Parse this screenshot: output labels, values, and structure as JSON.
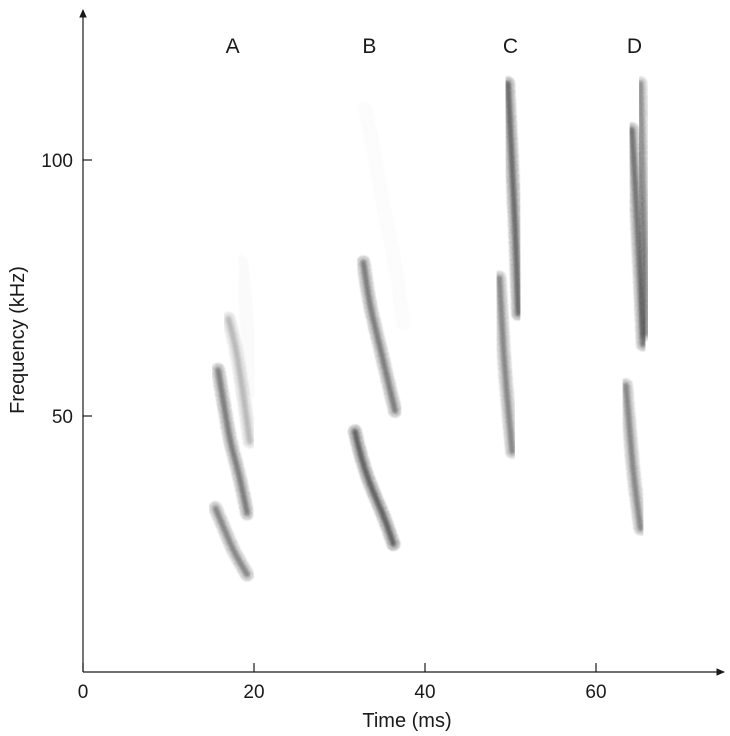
{
  "chart_data": {
    "type": "scatter",
    "xlabel": "Time (ms)",
    "ylabel": "Frequency (kHz)",
    "xlim": [
      0,
      75
    ],
    "ylim": [
      0,
      122
    ],
    "xticks": [
      0,
      20,
      40,
      60
    ],
    "yticks": [
      50,
      100
    ],
    "grid": false,
    "panel_labels": [
      {
        "label": "A",
        "x": 17.5
      },
      {
        "label": "B",
        "x": 33.5
      },
      {
        "label": "C",
        "x": 50
      },
      {
        "label": "D",
        "x": 64.5
      }
    ],
    "calls": [
      {
        "call": "A",
        "component": "fundamental",
        "points": [
          [
            15.5,
            32
          ],
          [
            16.5,
            28
          ],
          [
            17.5,
            24
          ],
          [
            18.5,
            21
          ],
          [
            19.2,
            19
          ]
        ],
        "intensity": 0.55
      },
      {
        "call": "A",
        "component": "harmonic 2",
        "points": [
          [
            15.8,
            59
          ],
          [
            16.5,
            52
          ],
          [
            17.2,
            45
          ],
          [
            18.2,
            39
          ],
          [
            19.2,
            31
          ]
        ],
        "intensity": 0.6
      },
      {
        "call": "A",
        "component": "harmonic 3",
        "points": [
          [
            17.0,
            69
          ],
          [
            17.8,
            64
          ],
          [
            18.5,
            57
          ],
          [
            19.5,
            45
          ]
        ],
        "intensity": 0.3
      },
      {
        "call": "A",
        "component": "faint upper",
        "points": [
          [
            18.5,
            80
          ],
          [
            19.3,
            66
          ],
          [
            19.8,
            55
          ]
        ],
        "intensity": 0.07
      },
      {
        "call": "B",
        "component": "fundamental",
        "points": [
          [
            31.8,
            47
          ],
          [
            32.5,
            42
          ],
          [
            33.5,
            37
          ],
          [
            34.5,
            33
          ],
          [
            35.5,
            29
          ],
          [
            36.3,
            25
          ]
        ],
        "intensity": 0.75
      },
      {
        "call": "B",
        "component": "harmonic 2",
        "points": [
          [
            32.8,
            80
          ],
          [
            33.5,
            72
          ],
          [
            34.5,
            65
          ],
          [
            35.5,
            58
          ],
          [
            36.5,
            51
          ]
        ],
        "intensity": 0.6
      },
      {
        "call": "B",
        "component": "faint upper",
        "points": [
          [
            33.0,
            110
          ],
          [
            34.0,
            102
          ],
          [
            35.0,
            92
          ],
          [
            36.5,
            80
          ],
          [
            37.5,
            68
          ]
        ],
        "intensity": 0.05
      },
      {
        "call": "C",
        "component": "fundamental",
        "points": [
          [
            48.7,
            77
          ],
          [
            49.0,
            68
          ],
          [
            49.3,
            60
          ],
          [
            49.7,
            52
          ],
          [
            50.2,
            43
          ]
        ],
        "intensity": 0.55
      },
      {
        "call": "C",
        "component": "harmonic 2",
        "points": [
          [
            49.7,
            115
          ],
          [
            50.0,
            105
          ],
          [
            50.3,
            95
          ],
          [
            50.6,
            85
          ],
          [
            50.9,
            70
          ]
        ],
        "intensity": 0.7
      },
      {
        "call": "D",
        "component": "fundamental",
        "points": [
          [
            63.5,
            56
          ],
          [
            63.9,
            48
          ],
          [
            64.3,
            40
          ],
          [
            64.8,
            33
          ],
          [
            65.2,
            28
          ]
        ],
        "intensity": 0.55
      },
      {
        "call": "D",
        "component": "harmonic 2",
        "points": [
          [
            64.2,
            106
          ],
          [
            64.6,
            95
          ],
          [
            64.9,
            85
          ],
          [
            65.2,
            75
          ],
          [
            65.5,
            64
          ]
        ],
        "intensity": 0.65
      },
      {
        "call": "D",
        "component": "harmonic 2 upper",
        "points": [
          [
            65.2,
            115
          ],
          [
            65.4,
            100
          ],
          [
            65.6,
            90
          ],
          [
            65.8,
            78
          ],
          [
            65.9,
            66
          ]
        ],
        "intensity": 0.5
      }
    ]
  }
}
